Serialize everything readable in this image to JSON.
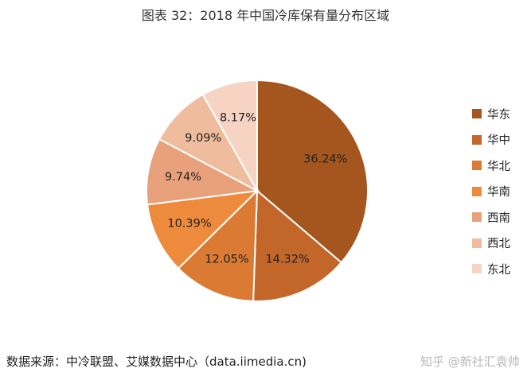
{
  "chart_data": {
    "type": "pie",
    "title": "图表 32：2018 年中国冷库保有量分布区域",
    "slices": [
      {
        "label": "华东",
        "value": 36.24,
        "display": "36.24%",
        "color": "#a5561e"
      },
      {
        "label": "华中",
        "value": 14.32,
        "display": "14.32%",
        "color": "#c2662a"
      },
      {
        "label": "华北",
        "value": 12.05,
        "display": "12.05%",
        "color": "#da7a33"
      },
      {
        "label": "华南",
        "value": 10.39,
        "display": "10.39%",
        "color": "#ee8a3c"
      },
      {
        "label": "西南",
        "value": 9.74,
        "display": "9.74%",
        "color": "#e8a17a"
      },
      {
        "label": "西北",
        "value": 9.09,
        "display": "9.09%",
        "color": "#efbc9e"
      },
      {
        "label": "东北",
        "value": 8.17,
        "display": "8.17%",
        "color": "#f6d3c2"
      }
    ],
    "legend_position": "right"
  },
  "source": "数据来源：中冷联盟、艾媒数据中心（data.iimedia.cn)",
  "watermark": "知乎 @新社汇袁帅"
}
